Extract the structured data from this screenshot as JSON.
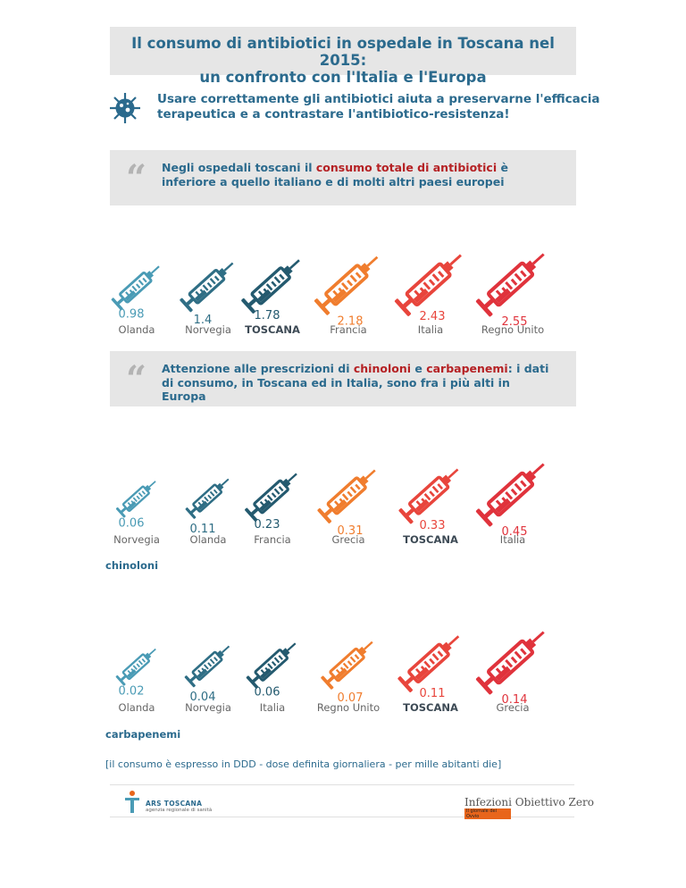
{
  "title": {
    "line1": "Il consumo di antibiotici in ospedale in Toscana nel 2015:",
    "line2": "un confronto con l'Italia e l'Europa"
  },
  "subtitle": "Usare correttamente gli antibiotici aiuta a preservarne l'efficacia terapeutica e a contrastare l'antibiotico-resistenza!",
  "quote1": {
    "mark": "“",
    "pre": "Negli ospedali toscani il ",
    "highlight": "consumo totale di antibiotici",
    "post": " è inferiore a quello italiano e di molti altri paesi europei"
  },
  "quote2": {
    "mark": "“",
    "pre": "Attenzione alle prescrizioni di ",
    "highlight1": "chinoloni",
    "mid": " e ",
    "highlight2": "carbapenemi",
    "post": ": i dati di consumo, in Toscana ed in Italia, sono fra i più alti in Europa"
  },
  "colors": [
    "#4a9bb5",
    "#2f6e85",
    "#245a6f",
    "#f07d2e",
    "#e8453c",
    "#e0333c"
  ],
  "chart_data": [
    {
      "type": "bar",
      "title": "",
      "categories": [
        "Olanda",
        "Norvegia",
        "TOSCANA",
        "Francia",
        "Italia",
        "Regno Unito"
      ],
      "values": [
        0.98,
        1.4,
        1.78,
        2.18,
        2.43,
        2.55
      ],
      "value_labels": [
        "0.98",
        "1.4",
        "1.78",
        "2.18",
        "2.43",
        "2.55"
      ],
      "highlight": "TOSCANA"
    },
    {
      "type": "bar",
      "title": "chinoloni",
      "categories": [
        "Norvegia",
        "Olanda",
        "Francia",
        "Grecia",
        "TOSCANA",
        "Italia"
      ],
      "values": [
        0.06,
        0.11,
        0.23,
        0.31,
        0.33,
        0.45
      ],
      "value_labels": [
        "0.06",
        "0.11",
        "0.23",
        "0.31",
        "0.33",
        "0.45"
      ],
      "highlight": "TOSCANA"
    },
    {
      "type": "bar",
      "title": "carbapenemi",
      "categories": [
        "Olanda",
        "Norvegia",
        "Italia",
        "Regno Unito",
        "TOSCANA",
        "Grecia"
      ],
      "values": [
        0.02,
        0.04,
        0.06,
        0.07,
        0.11,
        0.14
      ],
      "value_labels": [
        "0.02",
        "0.04",
        "0.06",
        "0.07",
        "0.11",
        "0.14"
      ],
      "highlight": "TOSCANA"
    }
  ],
  "note": "[il consumo è espresso in DDD - dose definita giornaliera - per mille abitanti die]",
  "footer": {
    "ars_name": "ARS TOSCANA",
    "ars_sub": "agenzia regionale di sanità",
    "iz_logo": "Infezioni Obiettivo Zero",
    "iz_sub": "Il giornale dei Ovvio"
  }
}
